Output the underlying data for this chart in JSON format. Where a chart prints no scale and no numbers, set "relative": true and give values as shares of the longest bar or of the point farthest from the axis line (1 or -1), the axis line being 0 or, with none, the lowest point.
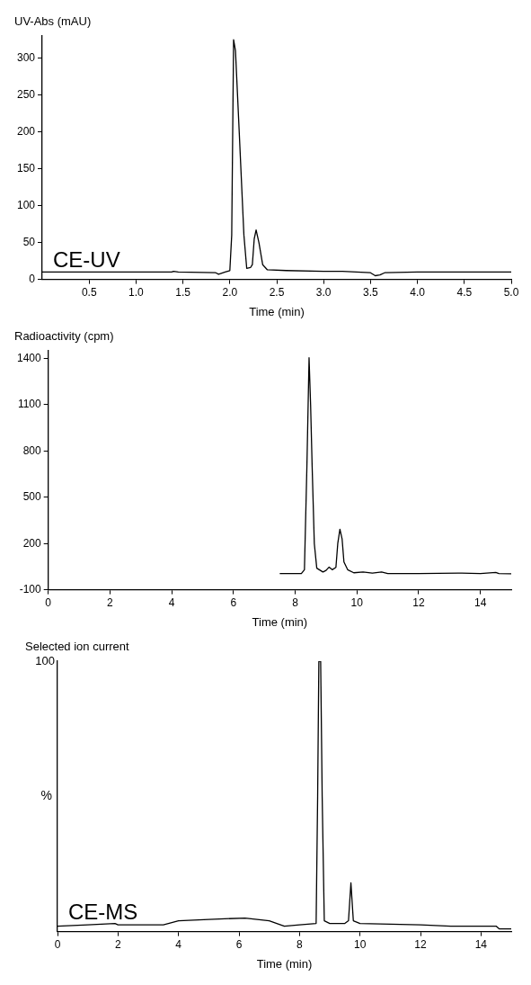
{
  "chart_data": [
    {
      "type": "line",
      "ylabel": "UV-Abs (mAU)",
      "xlabel": "Time (min)",
      "annotations": [
        "CE-UV"
      ],
      "xlim": [
        0,
        5
      ],
      "xticks": [
        {
          "value": 0.5,
          "label": "0.5"
        },
        {
          "value": 1,
          "label": "1.0"
        },
        {
          "value": 1.5,
          "label": "1.5"
        },
        {
          "value": 2,
          "label": "2.0"
        },
        {
          "value": 2.5,
          "label": "2.5"
        },
        {
          "value": 3,
          "label": "3.0"
        },
        {
          "value": 3.5,
          "label": "3.5"
        },
        {
          "value": 4,
          "label": "4.0"
        },
        {
          "value": 4.5,
          "label": "4.5"
        },
        {
          "value": 5,
          "label": "5.0"
        }
      ],
      "ylim": [
        0,
        330
      ],
      "yticks": [
        0,
        50,
        100,
        150,
        200,
        250,
        300
      ],
      "grid": false,
      "legend": false,
      "marker": "none",
      "line_style": "solid",
      "series": [
        {
          "color": "#000000",
          "x": [
            0,
            0.5,
            1.0,
            1.38,
            1.4,
            1.45,
            1.85,
            1.88,
            1.95,
            2.0,
            2.02,
            2.04,
            2.06,
            2.1,
            2.15,
            2.18,
            2.22,
            2.24,
            2.26,
            2.28,
            2.31,
            2.35,
            2.4,
            2.6,
            3.0,
            3.2,
            3.5,
            3.55,
            3.6,
            3.65,
            4.0,
            5.0
          ],
          "values": [
            10,
            10,
            10,
            10,
            11,
            10,
            9,
            7,
            10,
            12,
            60,
            325,
            310,
            200,
            60,
            15,
            16,
            20,
            55,
            67,
            50,
            20,
            13,
            12,
            11,
            11,
            9,
            5,
            6,
            9,
            10,
            10
          ]
        }
      ]
    },
    {
      "type": "line",
      "ylabel": "Radioactivity (cpm)",
      "xlabel": "Time (min)",
      "xlim": [
        0,
        15
      ],
      "xticks": [
        0,
        2,
        4,
        6,
        8,
        10,
        12,
        14
      ],
      "ylim": [
        -100,
        1450
      ],
      "yticks": [
        -100,
        200,
        500,
        800,
        1100,
        1400
      ],
      "grid": false,
      "legend": false,
      "marker": "none",
      "line_style": "solid",
      "series": [
        {
          "color": "#000000",
          "x": [
            7.5,
            8.2,
            8.3,
            8.38,
            8.45,
            8.5,
            8.55,
            8.62,
            8.7,
            8.9,
            9.0,
            9.1,
            9.2,
            9.32,
            9.38,
            9.45,
            9.52,
            9.58,
            9.7,
            9.9,
            10.2,
            10.5,
            10.8,
            11.0,
            12,
            13.4,
            14,
            14.5,
            14.6,
            15
          ],
          "values": [
            5,
            5,
            30,
            700,
            1405,
            1100,
            700,
            200,
            40,
            15,
            25,
            47,
            30,
            45,
            200,
            292,
            230,
            80,
            30,
            10,
            15,
            8,
            15,
            5,
            5,
            8,
            5,
            12,
            5,
            3
          ]
        }
      ]
    },
    {
      "type": "line",
      "title": "Selected ion current",
      "ylabel": "%",
      "xlabel": "Time (min)",
      "annotations": [
        "100",
        "CE-MS"
      ],
      "relative": true,
      "xlim": [
        0,
        15
      ],
      "xticks": [
        0,
        2,
        4,
        6,
        8,
        10,
        12,
        14
      ],
      "grid": false,
      "legend": false,
      "marker": "none",
      "line_style": "solid",
      "series": [
        {
          "color": "#000000",
          "x": [
            0,
            1,
            1.9,
            2,
            3.5,
            4,
            5,
            6.2,
            7,
            7.5,
            8,
            8.55,
            8.6,
            8.64,
            8.7,
            8.75,
            8.82,
            9,
            9.5,
            9.62,
            9.7,
            9.78,
            10,
            12,
            13,
            14.5,
            14.6,
            15
          ],
          "values": [
            0.02,
            0.025,
            0.03,
            0.025,
            0.025,
            0.04,
            0.045,
            0.05,
            0.04,
            0.02,
            0.025,
            0.03,
            0.5,
            1,
            1,
            0.5,
            0.04,
            0.03,
            0.03,
            0.04,
            0.18,
            0.04,
            0.03,
            0.025,
            0.02,
            0.02,
            0.01,
            0.01
          ]
        }
      ]
    }
  ]
}
